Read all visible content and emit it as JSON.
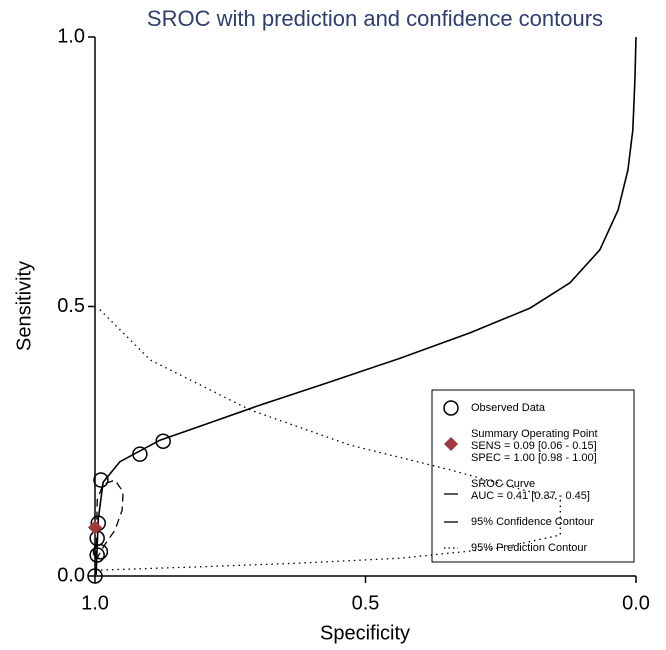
{
  "chart_data": {
    "type": "sroc",
    "title": "SROC with prediction and confidence contours",
    "xlabel": "Specificity",
    "ylabel": "Sensitivity",
    "xlim": [
      1.0,
      0.0
    ],
    "ylim": [
      0.0,
      1.0
    ],
    "xticks": [
      {
        "value": 1.0,
        "label": "1.0"
      },
      {
        "value": 0.5,
        "label": "0.5"
      },
      {
        "value": 0.0,
        "label": "0.0"
      }
    ],
    "yticks": [
      {
        "value": 0.0,
        "label": "0.0"
      },
      {
        "value": 0.5,
        "label": "0.5"
      },
      {
        "value": 1.0,
        "label": "1.0"
      }
    ],
    "series": [
      {
        "name": "Observed Data",
        "style": "points",
        "color": "#000000",
        "x": [
          1.0,
          0.996,
          0.99,
          0.996,
          0.994,
          0.989,
          0.917,
          0.874
        ],
        "values": [
          0.0,
          0.039,
          0.045,
          0.07,
          0.098,
          0.178,
          0.226,
          0.25
        ]
      },
      {
        "name": "Summary Operating Point",
        "style": "diamond",
        "color": "#a0393c",
        "details": [
          "SENS = 0.09 [0.06 - 0.15]",
          "SPEC = 1.00 [0.98 - 1.00]"
        ],
        "x": [
          1.0
        ],
        "values": [
          0.09
        ]
      },
      {
        "name": "SROC Curve",
        "style": "solid",
        "color": "#000000",
        "details": [
          "AUC = 0.41 [0.37 - 0.45]"
        ],
        "x": [
          0.998,
          0.994,
          0.985,
          0.954,
          0.88,
          0.806,
          0.695,
          0.566,
          0.436,
          0.307,
          0.196,
          0.122,
          0.067,
          0.033,
          0.015,
          0.006,
          0.002,
          0.0
        ],
        "values": [
          0.002,
          0.104,
          0.174,
          0.212,
          0.252,
          0.278,
          0.317,
          0.36,
          0.404,
          0.451,
          0.497,
          0.544,
          0.605,
          0.679,
          0.753,
          0.827,
          0.92,
          1.0
        ]
      },
      {
        "name": "95% Confidence Contour",
        "style": "dashed",
        "color": "#000000",
        "x": [
          0.998,
          0.982,
          0.963,
          0.95,
          0.948,
          0.963,
          0.985,
          0.996,
          0.998
        ],
        "values": [
          0.03,
          0.058,
          0.085,
          0.122,
          0.156,
          0.178,
          0.17,
          0.141,
          0.03
        ]
      },
      {
        "name": "95% Prediction Contour",
        "style": "dotted",
        "color": "#000000",
        "x": [
          0.991,
          0.898,
          0.713,
          0.529,
          0.344,
          0.14,
          0.14,
          0.251,
          0.436,
          0.621,
          0.806,
          0.991
        ],
        "values": [
          0.494,
          0.401,
          0.308,
          0.243,
          0.197,
          0.141,
          0.076,
          0.052,
          0.033,
          0.024,
          0.017,
          0.011
        ]
      }
    ]
  }
}
